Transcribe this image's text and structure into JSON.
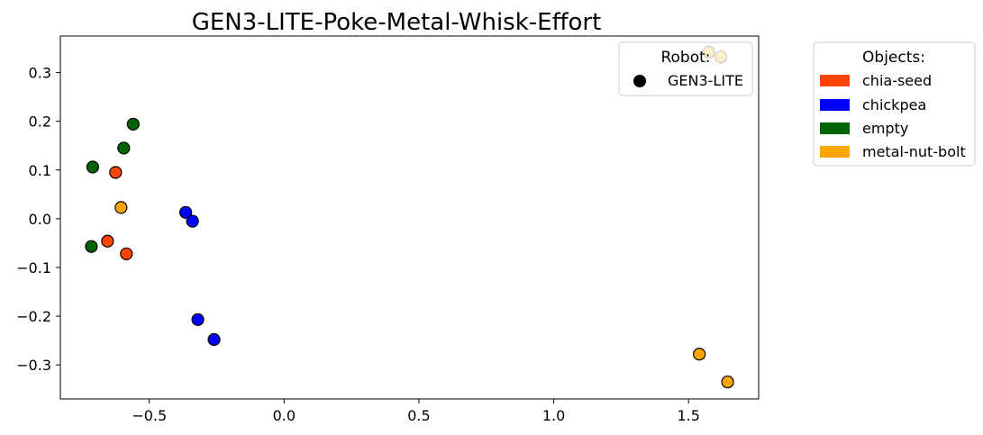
{
  "chart_data": {
    "type": "scatter",
    "title": "GEN3-LITE-Poke-Metal-Whisk-Effort",
    "xlabel": "",
    "ylabel": "",
    "xlim": [
      -0.83,
      1.76
    ],
    "ylim": [
      -0.37,
      0.375
    ],
    "x_ticks": [
      -0.5,
      0.0,
      0.5,
      1.0,
      1.5
    ],
    "x_tick_labels": [
      "−0.5",
      "0.0",
      "0.5",
      "1.0",
      "1.5"
    ],
    "y_ticks": [
      -0.3,
      -0.2,
      -0.1,
      0.0,
      0.1,
      0.2,
      0.3
    ],
    "y_tick_labels": [
      "−0.3",
      "−0.2",
      "−0.1",
      "0.0",
      "0.1",
      "0.2",
      "0.3"
    ],
    "grid": false,
    "robot_legend": {
      "title": "Robot:",
      "placement": "top-right inside plot",
      "entries": [
        {
          "label": "GEN3-LITE",
          "color": "#000000",
          "marker": "circle"
        }
      ]
    },
    "object_legend": {
      "title": "Objects:",
      "placement": "outside right",
      "entries": [
        {
          "label": "chia-seed",
          "color": "#FF4500"
        },
        {
          "label": "chickpea",
          "color": "#0000FF"
        },
        {
          "label": "empty",
          "color": "#006400"
        },
        {
          "label": "metal-nut-bolt",
          "color": "#FFA500"
        }
      ]
    },
    "series": [
      {
        "name": "chia-seed",
        "color": "#FF4500",
        "points": [
          {
            "x": -0.625,
            "y": 0.095
          },
          {
            "x": -0.655,
            "y": -0.046
          },
          {
            "x": -0.585,
            "y": -0.072
          }
        ]
      },
      {
        "name": "chickpea",
        "color": "#0000FF",
        "points": [
          {
            "x": -0.365,
            "y": 0.013
          },
          {
            "x": -0.34,
            "y": -0.005
          },
          {
            "x": -0.32,
            "y": -0.207
          },
          {
            "x": -0.26,
            "y": -0.248
          }
        ]
      },
      {
        "name": "empty",
        "color": "#006400",
        "points": [
          {
            "x": -0.71,
            "y": 0.106
          },
          {
            "x": -0.595,
            "y": 0.145
          },
          {
            "x": -0.56,
            "y": 0.194
          },
          {
            "x": -0.715,
            "y": -0.057
          }
        ]
      },
      {
        "name": "metal-nut-bolt",
        "color": "#FFA500",
        "points": [
          {
            "x": -0.605,
            "y": 0.023
          },
          {
            "x": 1.54,
            "y": -0.278
          },
          {
            "x": 1.645,
            "y": -0.335
          },
          {
            "x": 1.575,
            "y": 0.342
          },
          {
            "x": 1.62,
            "y": 0.332
          }
        ]
      }
    ]
  }
}
